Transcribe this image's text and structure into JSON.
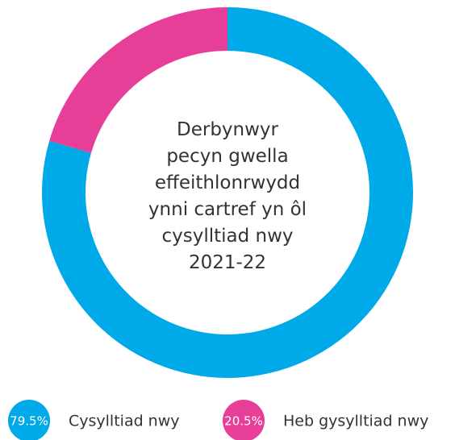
{
  "chart_data": {
    "type": "donut",
    "title": "Derbynwyr pecyn gwella effeithlonrwydd ynni cartref yn ôl cysylltiad nwy 2021-22",
    "categories": [
      "Cysylltiad nwy",
      "Heb gysylltiad nwy"
    ],
    "values": [
      79.5,
      20.5
    ],
    "value_labels": [
      "79.5%",
      "20.5%"
    ],
    "colors": [
      "#00a9e8",
      "#e73f97"
    ]
  }
}
